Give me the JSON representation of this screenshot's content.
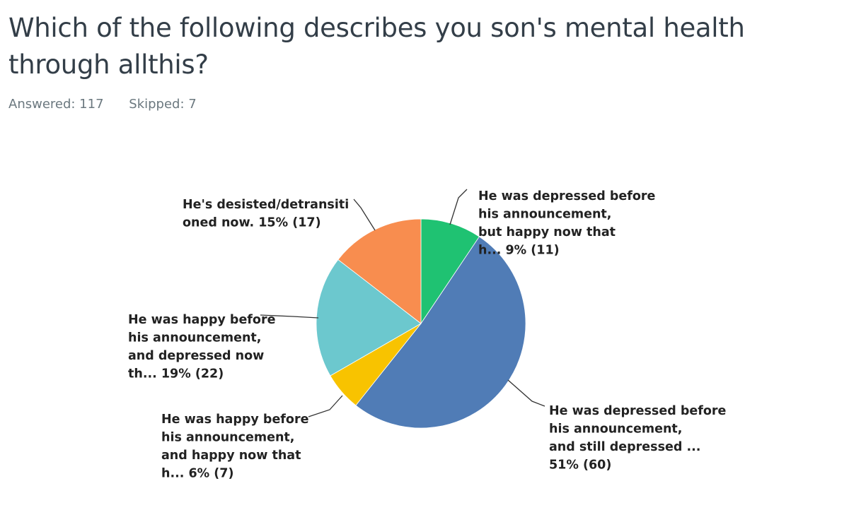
{
  "survey": {
    "question": "Which of the following describes you son's mental health through allthis?",
    "answered": "Answered: 117",
    "skipped": "Skipped: 7"
  },
  "colors": {
    "green": "#1fc272",
    "blue": "#507cb6",
    "yellow": "#f8c300",
    "teal": "#6cc8ce",
    "orange": "#f88d4f"
  },
  "chart_data": {
    "type": "pie",
    "title": "Which of the following describes you son's mental health through allthis?",
    "start": "12 o'clock, clockwise",
    "slices": [
      {
        "label_lines": [
          "He was depressed before",
          "his announcement,",
          "but happy now that",
          "h... 9% (11)"
        ],
        "percent": 9,
        "count": 11,
        "color": "#1fc272"
      },
      {
        "label_lines": [
          "He was depressed before",
          "his announcement,",
          "and still depressed ...",
          "51% (60)"
        ],
        "percent": 51,
        "count": 60,
        "color": "#507cb6"
      },
      {
        "label_lines": [
          "He was happy before",
          "his announcement,",
          "and happy now that",
          "h... 6% (7)"
        ],
        "percent": 6,
        "count": 7,
        "color": "#f8c300"
      },
      {
        "label_lines": [
          "He was happy before",
          "his announcement,",
          "and depressed now",
          "th... 19% (22)"
        ],
        "percent": 19,
        "count": 22,
        "color": "#6cc8ce"
      },
      {
        "label_lines": [
          "He's desisted/detransiti",
          "oned now. 15% (17)"
        ],
        "percent": 15,
        "count": 17,
        "color": "#f88d4f"
      }
    ]
  }
}
